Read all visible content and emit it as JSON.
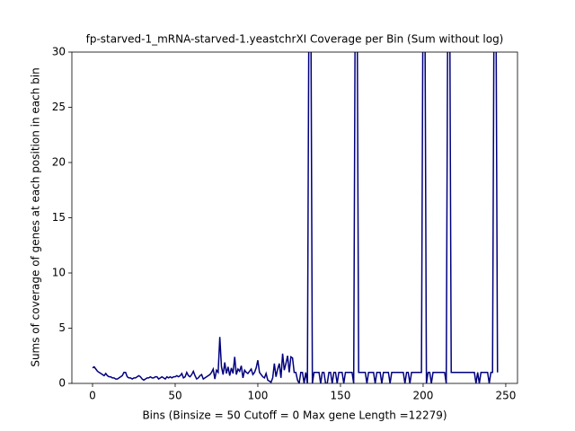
{
  "chart_data": {
    "type": "line",
    "title": "fp-starved-1_mRNA-starved-1.yeastchrXI Coverage per Bin (Sum without log)",
    "x_label": "Bins  (Binsize = 50 Cutoff = 0 Max gene Length =12279)",
    "y_label": "Sums of coverage of genes at each position in each bin",
    "color": "#00007f",
    "xlim": [
      -12.5,
      257.1
    ],
    "ylim": [
      0,
      30
    ],
    "xticks": [
      0,
      50,
      100,
      150,
      200,
      250
    ],
    "yticks": [
      0,
      5,
      10,
      15,
      20,
      25,
      30
    ],
    "values": [
      1.4,
      1.5,
      1.3,
      1.1,
      1.0,
      0.9,
      0.8,
      0.7,
      0.9,
      0.7,
      0.6,
      0.6,
      0.5,
      0.5,
      0.4,
      0.4,
      0.5,
      0.6,
      0.7,
      1.0,
      1.0,
      0.6,
      0.5,
      0.5,
      0.4,
      0.5,
      0.5,
      0.6,
      0.7,
      0.6,
      0.4,
      0.3,
      0.4,
      0.5,
      0.5,
      0.6,
      0.5,
      0.5,
      0.6,
      0.6,
      0.4,
      0.5,
      0.6,
      0.5,
      0.4,
      0.6,
      0.5,
      0.6,
      0.5,
      0.6,
      0.6,
      0.7,
      0.6,
      0.7,
      0.9,
      0.5,
      0.6,
      1.0,
      0.7,
      0.6,
      0.8,
      1.1,
      0.7,
      0.4,
      0.5,
      0.7,
      0.8,
      0.4,
      0.5,
      0.6,
      0.7,
      0.8,
      1.0,
      1.3,
      0.4,
      1.2,
      1.0,
      4.2,
      1.5,
      0.8,
      1.9,
      0.9,
      1.5,
      0.7,
      1.4,
      0.9,
      2.4,
      0.8,
      1.3,
      1.1,
      1.6,
      0.5,
      1.2,
      1.0,
      0.9,
      1.1,
      1.3,
      0.8,
      1.0,
      1.4,
      2.1,
      1.0,
      0.8,
      0.6,
      0.5,
      0.9,
      0.3,
      0.2,
      0.1,
      0.5,
      1.8,
      0.6,
      1.3,
      1.8,
      0.5,
      2.7,
      1.2,
      1.8,
      2.5,
      1.0,
      2.4,
      2.3,
      1.0,
      1.0,
      0.3,
      0,
      1.0,
      1.0,
      0,
      1.0,
      0,
      38,
      38,
      0,
      1,
      1,
      1,
      1,
      0,
      1,
      1,
      0,
      0,
      1,
      1,
      0,
      1,
      1,
      0,
      1,
      1,
      1,
      0,
      1,
      1,
      1,
      1,
      1,
      0,
      38,
      38,
      1,
      1,
      1,
      1,
      1,
      0,
      1,
      1,
      1,
      1,
      0,
      1,
      1,
      1,
      0,
      1,
      1,
      1,
      1,
      0,
      1,
      1,
      1,
      1,
      1,
      1,
      1,
      1,
      0,
      1,
      1,
      0,
      1,
      1,
      1,
      1,
      1,
      1,
      1,
      38,
      38,
      0,
      1,
      1,
      0,
      1,
      1,
      1,
      1,
      1,
      1,
      1,
      1,
      0,
      38,
      38,
      1,
      1,
      1,
      1,
      1,
      1,
      1,
      1,
      1,
      1,
      1,
      1,
      1,
      1,
      1,
      0,
      1,
      0,
      1,
      1,
      1,
      1,
      1,
      0,
      1,
      1,
      38,
      38,
      1
    ]
  }
}
